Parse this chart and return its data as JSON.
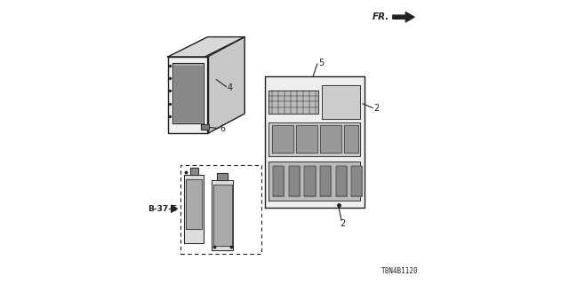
{
  "bg_color": "#ffffff",
  "line_color": "#222222",
  "diagram_code": "T8N4B1120",
  "fr_label": "FR.",
  "label_4": "4",
  "label_5": "5",
  "label_6": "6",
  "label_2a": "2",
  "label_2b": "2",
  "label_b375": "B-37-5"
}
